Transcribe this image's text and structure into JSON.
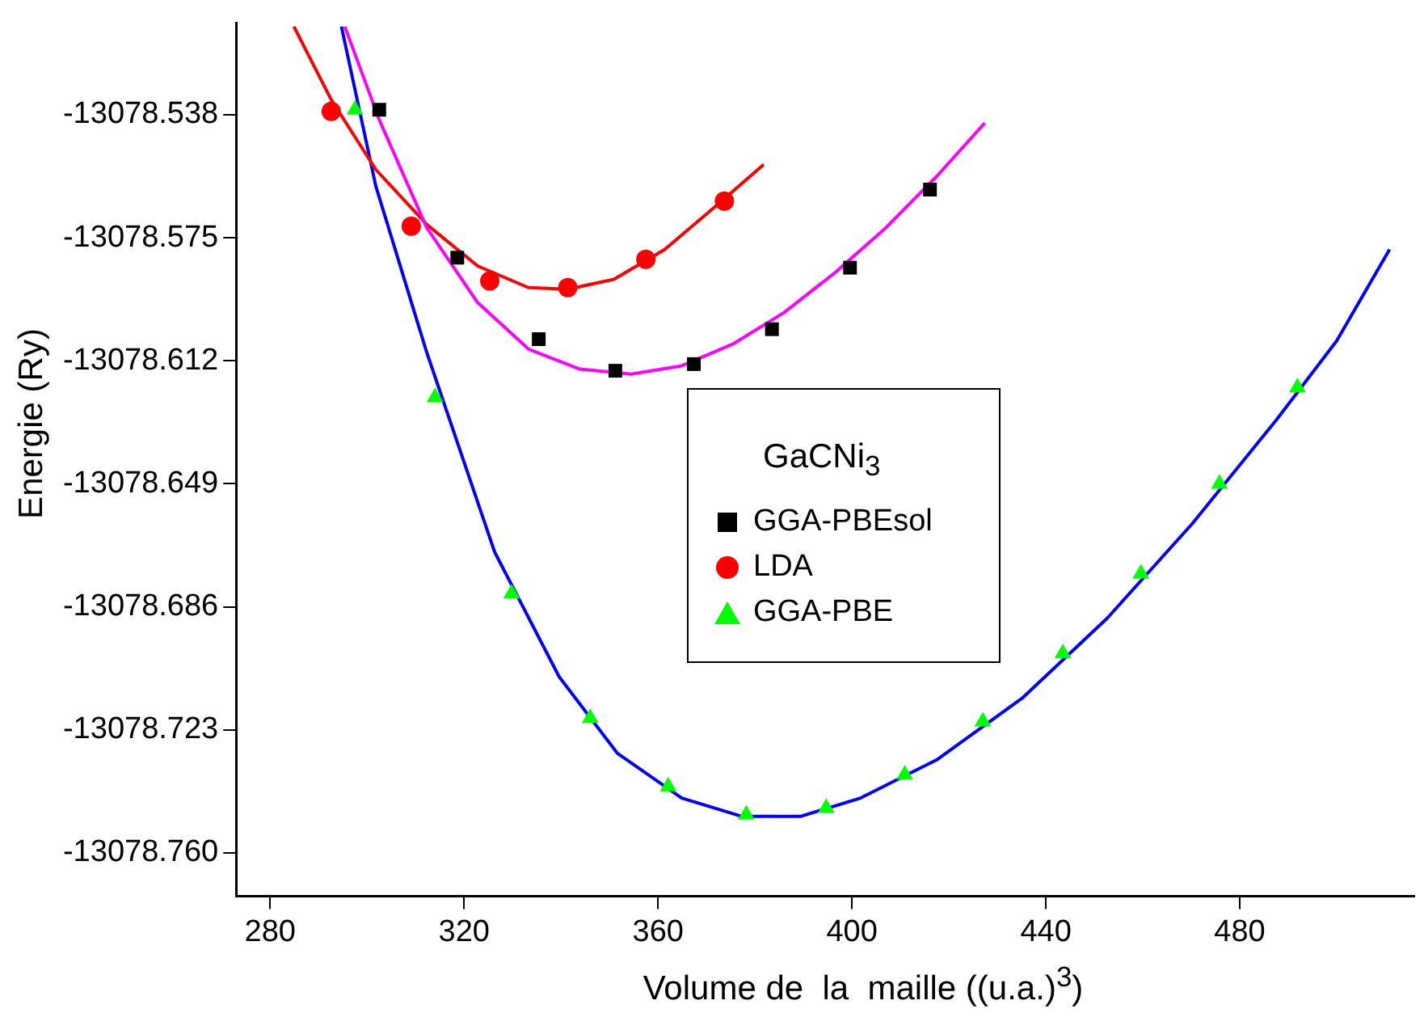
{
  "chart_data": {
    "type": "scatter",
    "xlabel": "Volume de  la  maille ((u.a.)$^{3}$)",
    "ylabel": "Energie (Ry)",
    "legend_title": "GaCNi$_{3}$",
    "legend": "center",
    "grid": false,
    "xlim": [
      273,
      516
    ],
    "xticks": [
      280,
      320,
      360,
      400,
      440,
      480
    ],
    "ylim": [
      -13078.773,
      -13078.5105
    ],
    "yticks": [
      -13078.538,
      -13078.575,
      -13078.612,
      -13078.649,
      -13078.686,
      -13078.723,
      {
        "value": -13078.76,
        "label": "-13078.760"
      }
    ],
    "series": [
      {
        "type": "line",
        "color": "#ff00ff",
        "marker": "none",
        "x": [
          295.4,
          302.5,
          312.3,
          322.8,
          333.3,
          343.9,
          354.4,
          364.9,
          375.4,
          386.0,
          396.5,
          407.0,
          417.5,
          427.4
        ],
        "values": [
          -13078.5115,
          -13078.5395,
          -13078.572,
          -13078.5945,
          -13078.6085,
          -13078.6145,
          -13078.616,
          -13078.6135,
          -13078.607,
          -13078.5975,
          -13078.5855,
          -13078.572,
          -13078.5565,
          -13078.5405
        ]
      },
      {
        "type": "line",
        "color": "#ff0000",
        "marker": "none",
        "x": [
          284.9,
          292.6,
          301.8,
          312.3,
          322.8,
          333.3,
          341.4,
          350.9,
          361.4,
          371.9,
          381.8
        ],
        "values": [
          -13078.5115,
          -13078.5335,
          -13078.5545,
          -13078.571,
          -13078.5835,
          -13078.59,
          -13078.5905,
          -13078.5875,
          -13078.5785,
          -13078.5655,
          -13078.553
        ]
      },
      {
        "type": "line",
        "color": "#0000ff",
        "marker": "none",
        "x": [
          294.7,
          301.8,
          312.3,
          326.3,
          339.6,
          351.6,
          364.9,
          377.2,
          389.5,
          401.8,
          417.5,
          435.1,
          452.6,
          470.2,
          487.7,
          500.0,
          510.9
        ],
        "values": [
          -13078.5115,
          -13078.5595,
          -13078.6095,
          -13078.6695,
          -13078.707,
          -13078.73,
          -13078.7435,
          -13078.749,
          -13078.749,
          -13078.7435,
          -13078.732,
          -13078.7135,
          -13078.6895,
          -13078.661,
          -13078.6295,
          -13078.606,
          -13078.5785
        ]
      },
      {
        "name": "GGA-PBEsol",
        "type": "scatter",
        "color": "#000000",
        "marker": "square",
        "x": [
          302.5,
          318.6,
          335.4,
          351.2,
          367.4,
          383.5,
          399.6,
          416.1
        ],
        "values": [
          -13078.5365,
          -13078.581,
          -13078.6055,
          -13078.615,
          -13078.613,
          -13078.6025,
          -13078.584,
          -13078.5605
        ]
      },
      {
        "name": "LDA",
        "type": "scatter",
        "color": "#ff0000",
        "marker": "circle",
        "x": [
          292.6,
          309.1,
          325.3,
          341.4,
          357.5,
          373.7
        ],
        "values": [
          -13078.537,
          -13078.5715,
          -13078.588,
          -13078.59,
          -13078.5815,
          -13078.564
        ]
      },
      {
        "name": "GGA-PBE",
        "type": "scatter",
        "color": "#00ff00",
        "marker": "triangle",
        "x": [
          297.5,
          314.0,
          329.8,
          346.0,
          362.1,
          378.2,
          394.7,
          410.9,
          427.0,
          443.5,
          459.6,
          475.8,
          491.9
        ],
        "values": [
          -13078.5365,
          -13078.623,
          -13078.682,
          -13078.7195,
          -13078.74,
          -13078.7485,
          -13078.7465,
          -13078.7365,
          -13078.7205,
          -13078.7,
          -13078.676,
          -13078.649,
          -13078.62
        ]
      }
    ]
  }
}
